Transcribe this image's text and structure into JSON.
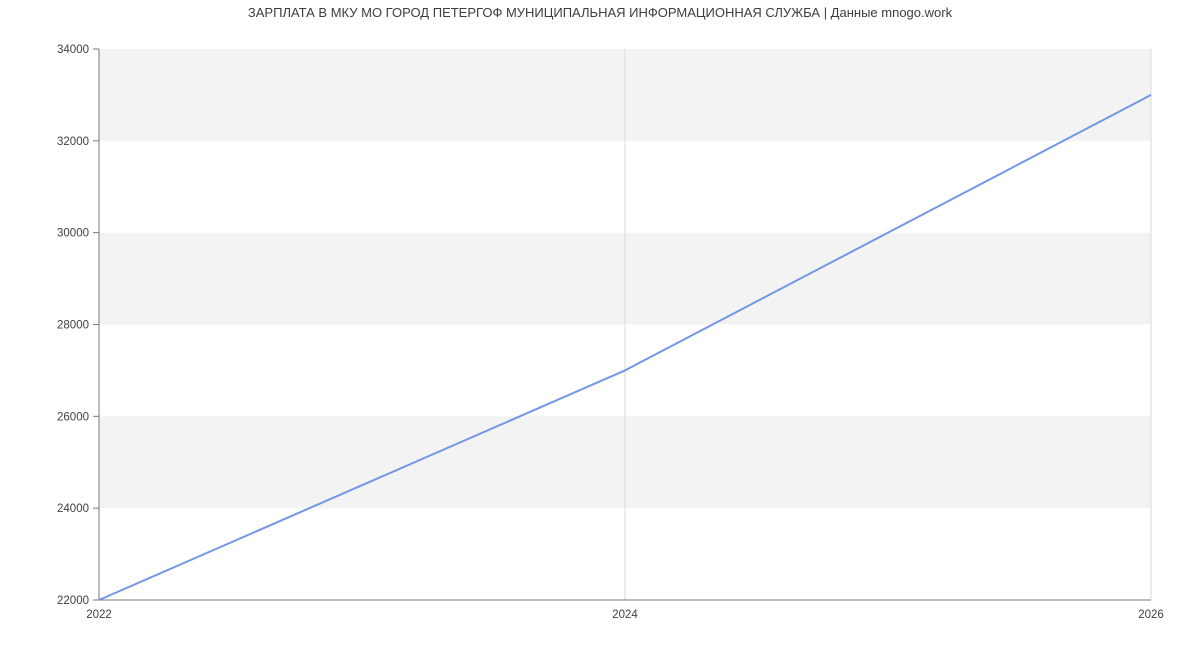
{
  "title": "ЗАРПЛАТА В МКУ МО ГОРОД ПЕТЕРГОФ МУНИЦИПАЛЬНАЯ ИНФОРМАЦИОННАЯ СЛУЖБА | Данные mnogo.work",
  "colors": {
    "background": "#ffffff",
    "title_text": "#3d3d3d",
    "band": "#f3f3f3",
    "vertical_gridline": "#d9d9d9",
    "axis_line": "#7a7a7a",
    "tick_label": "#404040",
    "line": "#7397e6"
  },
  "chart_data": {
    "type": "line",
    "title": "ЗАРПЛАТА В МКУ МО ГОРОД ПЕТЕРГОФ МУНИЦИПАЛЬНАЯ ИНФОРМАЦИОННАЯ СЛУЖБА | Данные mnogo.work",
    "x": [
      2022,
      2024,
      2026
    ],
    "series": [
      {
        "name": "ЗАРПЛАТА",
        "values": [
          22000,
          27000,
          33000
        ]
      }
    ],
    "xlabel": "",
    "ylabel": "",
    "xlim": [
      2022,
      2026
    ],
    "ylim": [
      22000,
      34000
    ],
    "x_tick_labels": [
      "2022",
      "2024",
      "2026"
    ],
    "y_ticks": [
      22000,
      24000,
      26000,
      28000,
      30000,
      32000,
      34000
    ],
    "y_tick_labels": [
      "22000",
      "24000",
      "26000",
      "28000",
      "30000",
      "32000",
      "34000"
    ],
    "grid": "alternating horizontal bands, vertical gridlines at 2024 and 2026",
    "legend": "none"
  }
}
